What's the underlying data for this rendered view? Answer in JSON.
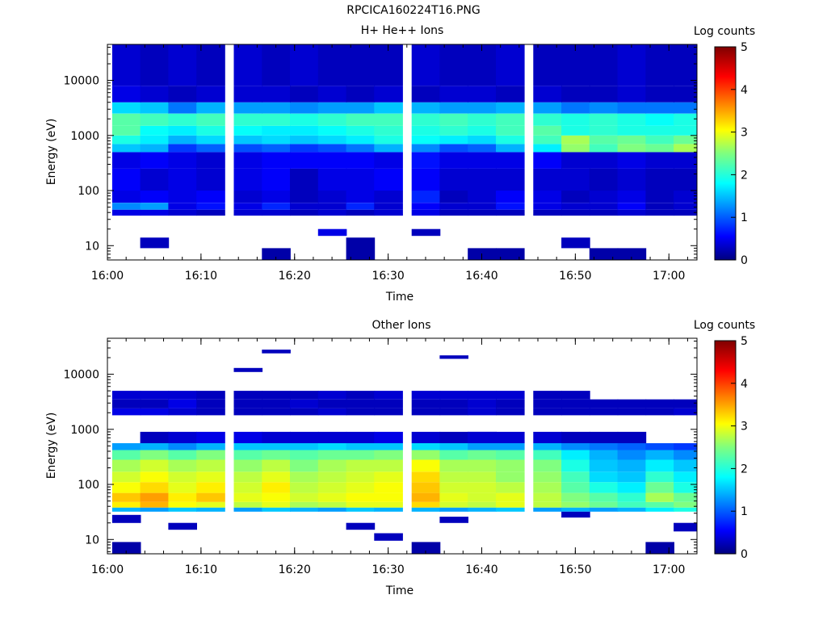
{
  "figure": {
    "title": "RPCICA160224T16.PNG"
  },
  "colors": {
    "colormap": "jet",
    "axis": "#000000",
    "background": "#ffffff"
  },
  "chart_data": [
    {
      "type": "heatmap",
      "title": "H+ He++ Ions",
      "xlabel": "Time",
      "ylabel": "Energy (eV)",
      "xlim": [
        "16:00",
        "17:03"
      ],
      "ylim": [
        5.5,
        45000
      ],
      "yscale": "log",
      "x_ticks": [
        "16:00",
        "16:10",
        "16:20",
        "16:30",
        "16:40",
        "16:50",
        "17:00"
      ],
      "y_ticks": [
        "10",
        "100",
        "1000",
        "10000"
      ],
      "colorbar": {
        "label": "Log counts",
        "range": [
          0,
          5
        ],
        "ticks": [
          "0",
          "1",
          "2",
          "3",
          "4",
          "5"
        ]
      },
      "time_bins": [
        "16:02",
        "16:05",
        "16:08",
        "16:11",
        "16:15",
        "16:18",
        "16:21",
        "16:24",
        "16:27",
        "16:30",
        "16:34",
        "16:37",
        "16:40",
        "16:43",
        "16:47",
        "16:50",
        "16:53",
        "16:56",
        "16:59",
        "17:02"
      ],
      "bands": [
        {
          "e_min": 35,
          "e_max": 45,
          "values": [
            0.5,
            0.5,
            0.4,
            0.3,
            0.4,
            0.4,
            0.3,
            0.4,
            0.3,
            0.4,
            0.5,
            0.3,
            0.3,
            0.3,
            0.3,
            0.3,
            0.3,
            0.4,
            0.3,
            0.3
          ]
        },
        {
          "e_min": 45,
          "e_max": 60,
          "values": [
            1.3,
            1.4,
            0.5,
            0.7,
            0.5,
            0.8,
            0.4,
            0.4,
            0.8,
            0.4,
            0.6,
            0.4,
            0.4,
            0.7,
            0.5,
            0.4,
            0.4,
            0.6,
            0.3,
            0.4
          ]
        },
        {
          "e_min": 60,
          "e_max": 100,
          "values": [
            0.5,
            0.6,
            0.5,
            0.6,
            0.4,
            0.5,
            0.3,
            0.4,
            0.5,
            0.4,
            0.8,
            0.3,
            0.4,
            0.6,
            0.5,
            0.3,
            0.4,
            0.5,
            0.3,
            0.4
          ]
        },
        {
          "e_min": 100,
          "e_max": 250,
          "values": [
            0.6,
            0.4,
            0.5,
            0.4,
            0.5,
            0.6,
            0.3,
            0.5,
            0.5,
            0.6,
            0.6,
            0.4,
            0.4,
            0.4,
            0.4,
            0.4,
            0.3,
            0.4,
            0.3,
            0.3
          ]
        },
        {
          "e_min": 250,
          "e_max": 500,
          "values": [
            0.5,
            0.6,
            0.5,
            0.4,
            0.5,
            0.6,
            0.6,
            0.6,
            0.6,
            0.5,
            0.7,
            0.5,
            0.5,
            0.5,
            0.6,
            0.4,
            0.4,
            0.5,
            0.4,
            0.4
          ]
        },
        {
          "e_min": 500,
          "e_max": 700,
          "values": [
            1.6,
            1.5,
            0.9,
            1.1,
            1.0,
            1.1,
            0.9,
            1.0,
            1.2,
            1.5,
            1.3,
            1.0,
            1.1,
            1.5,
            1.8,
            2.6,
            2.2,
            2.5,
            2.4,
            2.7
          ]
        },
        {
          "e_min": 700,
          "e_max": 1000,
          "values": [
            2.0,
            1.8,
            1.5,
            1.7,
            1.6,
            1.7,
            1.6,
            1.7,
            1.8,
            2.0,
            1.9,
            1.8,
            1.7,
            2.0,
            2.2,
            2.7,
            2.3,
            2.4,
            2.2,
            2.4
          ]
        },
        {
          "e_min": 1000,
          "e_max": 1500,
          "values": [
            2.3,
            1.9,
            1.8,
            2.0,
            1.9,
            1.8,
            1.8,
            1.9,
            2.0,
            2.1,
            2.0,
            2.1,
            2.0,
            2.2,
            2.3,
            2.0,
            2.1,
            2.0,
            2.0,
            2.0
          ]
        },
        {
          "e_min": 1500,
          "e_max": 2500,
          "values": [
            2.3,
            2.2,
            2.1,
            2.2,
            2.1,
            2.1,
            2.0,
            2.1,
            2.2,
            2.2,
            2.1,
            2.2,
            2.1,
            2.2,
            2.1,
            2.0,
            2.1,
            2.0,
            1.9,
            2.0
          ]
        },
        {
          "e_min": 2500,
          "e_max": 4000,
          "values": [
            1.7,
            1.6,
            1.2,
            1.5,
            1.4,
            1.4,
            1.3,
            1.4,
            1.4,
            1.6,
            1.5,
            1.4,
            1.4,
            1.5,
            1.4,
            1.2,
            1.3,
            1.2,
            1.2,
            1.2
          ]
        },
        {
          "e_min": 4000,
          "e_max": 8000,
          "values": [
            0.5,
            0.4,
            0.3,
            0.4,
            0.4,
            0.4,
            0.3,
            0.4,
            0.3,
            0.4,
            0.3,
            0.4,
            0.4,
            0.3,
            0.4,
            0.3,
            0.3,
            0.4,
            0.3,
            0.3
          ]
        },
        {
          "e_min": 8000,
          "e_max": 45000,
          "values": [
            0.4,
            0.3,
            0.4,
            0.3,
            0.4,
            0.3,
            0.4,
            0.3,
            0.3,
            0.3,
            0.4,
            0.3,
            0.3,
            0.4,
            0.3,
            0.3,
            0.3,
            0.4,
            0.3,
            0.3
          ]
        }
      ],
      "low_energy_patches": [
        {
          "time": "16:05",
          "e_min": 9,
          "e_max": 14,
          "value": 0.3
        },
        {
          "time": "16:18",
          "e_min": 5.5,
          "e_max": 9,
          "value": 0.2
        },
        {
          "time": "16:24",
          "e_min": 15,
          "e_max": 20,
          "value": 0.5
        },
        {
          "time": "16:27",
          "e_min": 5.5,
          "e_max": 14,
          "value": 0.2
        },
        {
          "time": "16:34",
          "e_min": 15,
          "e_max": 20,
          "value": 0.3
        },
        {
          "time": "16:40",
          "e_min": 5.5,
          "e_max": 9,
          "value": 0.2
        },
        {
          "time": "16:43",
          "e_min": 5.5,
          "e_max": 9,
          "value": 0.2
        },
        {
          "time": "16:50",
          "e_min": 9,
          "e_max": 14,
          "value": 0.3
        },
        {
          "time": "16:56",
          "e_min": 5.5,
          "e_max": 9,
          "value": 0.2
        },
        {
          "time": "16:53",
          "e_min": 5.5,
          "e_max": 9,
          "value": 0.2
        }
      ]
    },
    {
      "type": "heatmap",
      "title": "Other Ions",
      "xlabel": "Time",
      "ylabel": "Energy (eV)",
      "xlim": [
        "16:00",
        "17:03"
      ],
      "ylim": [
        5.5,
        45000
      ],
      "yscale": "log",
      "x_ticks": [
        "16:00",
        "16:10",
        "16:20",
        "16:30",
        "16:40",
        "16:50",
        "17:00"
      ],
      "y_ticks": [
        "10",
        "100",
        "1000",
        "10000"
      ],
      "colorbar": {
        "label": "Log counts",
        "range": [
          0,
          5
        ],
        "ticks": [
          "0",
          "1",
          "2",
          "3",
          "4",
          "5"
        ]
      },
      "time_bins": [
        "16:02",
        "16:05",
        "16:08",
        "16:11",
        "16:15",
        "16:18",
        "16:21",
        "16:24",
        "16:27",
        "16:30",
        "16:34",
        "16:37",
        "16:40",
        "16:43",
        "16:47",
        "16:50",
        "16:53",
        "16:56",
        "16:59",
        "17:02"
      ],
      "bands": [
        {
          "e_min": 32,
          "e_max": 38,
          "values": [
            1.5,
            1.4,
            1.6,
            1.5,
            1.4,
            1.6,
            1.5,
            1.4,
            1.6,
            1.5,
            1.5,
            1.4,
            1.5,
            1.6,
            1.4,
            1.5,
            1.4,
            1.5,
            1.8,
            2.0
          ]
        },
        {
          "e_min": 38,
          "e_max": 48,
          "values": [
            3.2,
            3.5,
            3.1,
            3.0,
            2.8,
            3.0,
            2.7,
            2.8,
            3.0,
            3.0,
            3.3,
            2.9,
            2.8,
            3.0,
            2.8,
            2.6,
            2.4,
            2.2,
            2.3,
            2.5
          ]
        },
        {
          "e_min": 48,
          "e_max": 70,
          "values": [
            3.4,
            3.6,
            3.2,
            3.4,
            3.0,
            3.1,
            2.9,
            3.0,
            3.1,
            3.1,
            3.5,
            3.0,
            2.9,
            3.0,
            2.8,
            2.5,
            2.3,
            2.1,
            2.7,
            2.4
          ]
        },
        {
          "e_min": 70,
          "e_max": 110,
          "values": [
            3.1,
            3.3,
            3.0,
            3.2,
            2.9,
            3.2,
            2.8,
            2.9,
            3.0,
            3.1,
            3.4,
            2.9,
            2.9,
            2.8,
            2.7,
            2.3,
            2.0,
            1.8,
            2.4,
            2.0
          ]
        },
        {
          "e_min": 110,
          "e_max": 170,
          "values": [
            2.9,
            3.1,
            2.9,
            3.0,
            2.8,
            3.0,
            2.7,
            2.8,
            2.9,
            3.0,
            3.3,
            2.8,
            2.8,
            2.6,
            2.6,
            2.2,
            1.7,
            1.6,
            2.1,
            1.8
          ]
        },
        {
          "e_min": 170,
          "e_max": 280,
          "values": [
            2.7,
            2.9,
            2.7,
            2.8,
            2.6,
            2.8,
            2.5,
            2.7,
            2.8,
            2.8,
            3.1,
            2.7,
            2.7,
            2.6,
            2.5,
            2.0,
            1.6,
            1.5,
            1.8,
            1.6
          ]
        },
        {
          "e_min": 280,
          "e_max": 420,
          "values": [
            2.3,
            2.5,
            2.3,
            2.5,
            2.3,
            2.4,
            2.3,
            2.4,
            2.4,
            2.5,
            2.6,
            2.3,
            2.4,
            2.3,
            2.2,
            1.8,
            1.5,
            1.3,
            1.5,
            1.3
          ]
        },
        {
          "e_min": 420,
          "e_max": 560,
          "values": [
            1.4,
            1.5,
            1.3,
            1.5,
            1.6,
            1.6,
            1.6,
            1.7,
            1.6,
            1.6,
            1.7,
            1.6,
            1.4,
            1.4,
            1.5,
            1.3,
            1.2,
            1.1,
            1.0,
            0.9
          ]
        },
        {
          "e_min": 560,
          "e_max": 900,
          "values": [
            0.0,
            0.3,
            0.4,
            0.5,
            0.5,
            0.4,
            0.4,
            0.4,
            0.4,
            0.5,
            0.4,
            0.3,
            0.4,
            0.4,
            0.4,
            0.3,
            0.3,
            0.3,
            0.0,
            0.0
          ]
        },
        {
          "e_min": 1800,
          "e_max": 2400,
          "values": [
            0.5,
            0.5,
            0.4,
            0.3,
            0.3,
            0.3,
            0.3,
            0.4,
            0.3,
            0.3,
            0.3,
            0.3,
            0.4,
            0.3,
            0.3,
            0.3,
            0.3,
            0.3,
            0.3,
            0.4
          ]
        },
        {
          "e_min": 2400,
          "e_max": 3500,
          "values": [
            0.3,
            0.3,
            0.5,
            0.3,
            0.3,
            0.3,
            0.4,
            0.3,
            0.3,
            0.3,
            0.3,
            0.3,
            0.4,
            0.3,
            0.3,
            0.3,
            0.3,
            0.3,
            0.3,
            0.3
          ]
        },
        {
          "e_min": 3500,
          "e_max": 5000,
          "values": [
            0.4,
            0.4,
            0.4,
            0.3,
            0.3,
            0.3,
            0.3,
            0.4,
            0.3,
            0.4,
            0.4,
            0.4,
            0.4,
            0.4,
            0.3,
            0.3,
            0.0,
            0.0,
            0.0,
            0.0
          ]
        }
      ],
      "sparse_patches": [
        {
          "time": "16:02",
          "e_min": 20,
          "e_max": 28,
          "value": 0.3
        },
        {
          "time": "16:02",
          "e_min": 5.5,
          "e_max": 9,
          "value": 0.2
        },
        {
          "time": "16:08",
          "e_min": 15,
          "e_max": 20,
          "value": 0.3
        },
        {
          "time": "16:15",
          "e_min": 11000,
          "e_max": 13000,
          "value": 0.3
        },
        {
          "time": "16:18",
          "e_min": 24000,
          "e_max": 28000,
          "value": 0.3
        },
        {
          "time": "16:27",
          "e_min": 15,
          "e_max": 20,
          "value": 0.3
        },
        {
          "time": "16:30",
          "e_min": 9.5,
          "e_max": 13,
          "value": 0.3
        },
        {
          "time": "16:34",
          "e_min": 5.5,
          "e_max": 9,
          "value": 0.2
        },
        {
          "time": "16:37",
          "e_min": 19000,
          "e_max": 22000,
          "value": 0.3
        },
        {
          "time": "16:37",
          "e_min": 20,
          "e_max": 26,
          "value": 0.3
        },
        {
          "time": "16:40",
          "e_min": 560,
          "e_max": 900,
          "value": 0.4
        },
        {
          "time": "16:50",
          "e_min": 25,
          "e_max": 32,
          "value": 0.3
        },
        {
          "time": "16:59",
          "e_min": 5.5,
          "e_max": 9,
          "value": 0.2
        },
        {
          "time": "17:02",
          "e_min": 14,
          "e_max": 20,
          "value": 0.3
        }
      ]
    }
  ]
}
